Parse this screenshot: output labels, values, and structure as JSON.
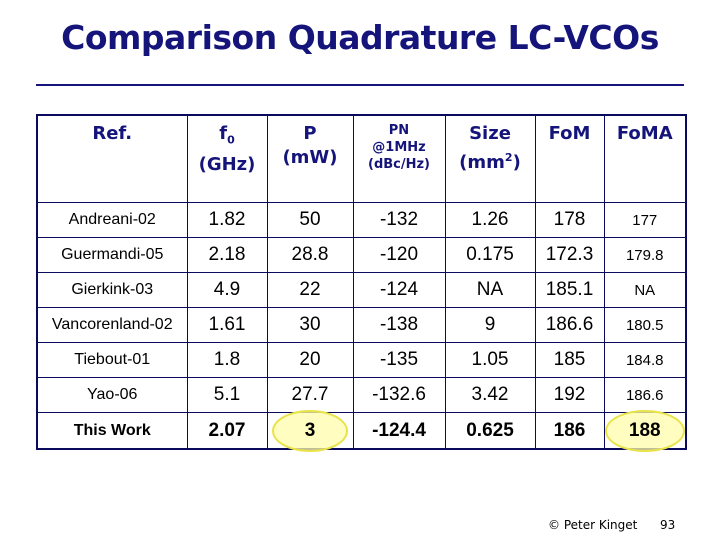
{
  "title": "Comparison Quadrature LC-VCOs",
  "table": {
    "headers": [
      {
        "line1": "Ref.",
        "line2": "",
        "line3": ""
      },
      {
        "line1": "f",
        "sub": "0",
        "line2": "(GHz)",
        "line3": ""
      },
      {
        "line1": "P",
        "line2": "(mW)",
        "line3": ""
      },
      {
        "line1": "PN",
        "line2": "@1MHz",
        "line3": "(dBc/Hz)"
      },
      {
        "line1": "Size",
        "line2": "(mm",
        "sup": "2",
        "line2b": ")",
        "line3": ""
      },
      {
        "line1": "FoM",
        "line2": "",
        "line3": ""
      },
      {
        "line1": "FoMA",
        "line2": "",
        "line3": ""
      }
    ],
    "rows": [
      [
        "Andreani-02",
        "1.82",
        "50",
        "-132",
        "1.26",
        "178",
        "177"
      ],
      [
        "Guermandi-05",
        "2.18",
        "28.8",
        "-120",
        "0.175",
        "172.3",
        "179.8"
      ],
      [
        "Gierkink-03",
        "4.9",
        "22",
        "-124",
        "NA",
        "185.1",
        "NA"
      ],
      [
        "Vancorenland-02",
        "1.61",
        "30",
        "-138",
        "9",
        "186.6",
        "180.5"
      ],
      [
        "Tiebout-01",
        "1.8",
        "20",
        "-135",
        "1.05",
        "185",
        "184.8"
      ],
      [
        "Yao-06",
        "5.1",
        "27.7",
        "-132.6",
        "3.42",
        "192",
        "186.6"
      ]
    ],
    "this_work": [
      "This Work",
      "2.07",
      "3",
      "-124.4",
      "0.625",
      "186",
      "188"
    ]
  },
  "footer": {
    "copyright": "© Peter Kinget",
    "page": "93"
  },
  "colors": {
    "title": "#14147a",
    "border": "#0b0b5e",
    "highlight": "#e9e34a"
  }
}
